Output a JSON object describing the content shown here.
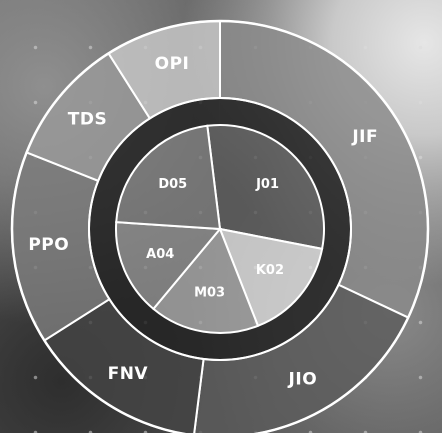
{
  "chart_data": {
    "type": "sunburst",
    "inner_ring": {
      "categories": [
        "J01",
        "K02",
        "M03",
        "A04",
        "D05"
      ],
      "values": [
        30,
        16,
        17,
        15,
        22
      ],
      "colors": [
        "#5a5a5a",
        "#dcdcdc",
        "#a3a3a3",
        "#8b8b8b",
        "#7a7a7a"
      ]
    },
    "outer_ring": {
      "categories": [
        "JIF",
        "JIO",
        "FNV",
        "PPO",
        "TDS",
        "OPI"
      ],
      "values": [
        32,
        20,
        14,
        15,
        10,
        9
      ],
      "colors": [
        "#8a8a8a",
        "#5b5b5b",
        "#444444",
        "#7c7c7c",
        "#9a9a9a",
        "#c8c8c8"
      ]
    },
    "title": "",
    "legend": "none"
  }
}
